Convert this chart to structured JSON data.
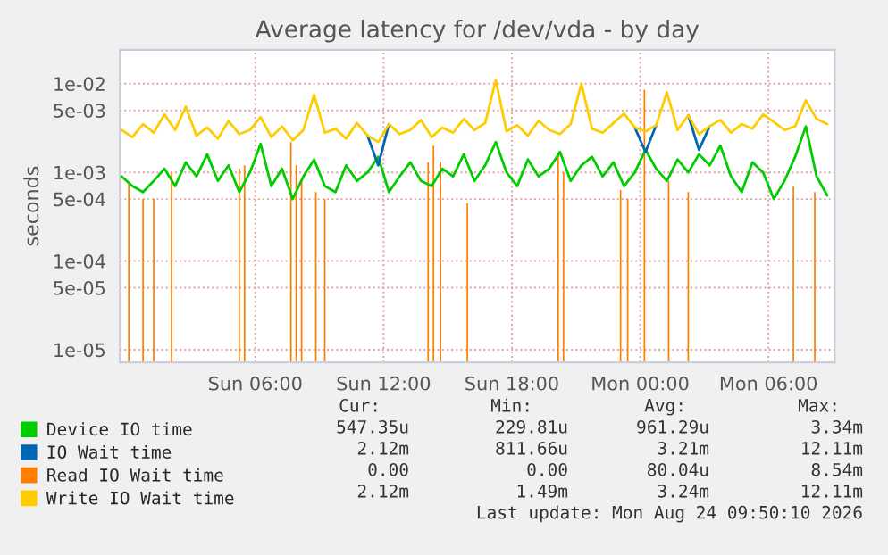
{
  "chart_data": {
    "type": "line",
    "title": "Average latency for /dev/vda - by day",
    "ylabel": "seconds",
    "log": true,
    "grid": true,
    "legend": "bottom left",
    "xlim": [
      "2026-08-22T23:40",
      "2026-08-24T09:06"
    ],
    "xticks": [
      {
        "value": "2026-08-23T06:00",
        "label": "Sun 06:00"
      },
      {
        "value": "2026-08-23T12:00",
        "label": "Sun 12:00"
      },
      {
        "value": "2026-08-23T18:00",
        "label": "Sun 18:00"
      },
      {
        "value": "2026-08-24T00:00",
        "label": "Mon 00:00"
      },
      {
        "value": "2026-08-24T06:00",
        "label": "Mon 06:00"
      }
    ],
    "ylim": [
      7.2e-06,
      0.024
    ],
    "yticks": [
      {
        "value": 0.01,
        "label": "1e-02"
      },
      {
        "value": 0.005,
        "label": "5e-03"
      },
      {
        "value": 0.001,
        "label": "1e-03"
      },
      {
        "value": 0.0005,
        "label": "5e-04"
      },
      {
        "value": 0.0001,
        "label": "1e-04"
      },
      {
        "value": 5e-05,
        "label": "5e-05"
      },
      {
        "value": 1e-05,
        "label": "1e-05"
      }
    ],
    "x": [
      "2026-08-22T23:45",
      "2026-08-23T00:15",
      "2026-08-23T00:45",
      "2026-08-23T01:15",
      "2026-08-23T01:45",
      "2026-08-23T02:15",
      "2026-08-23T02:45",
      "2026-08-23T03:15",
      "2026-08-23T03:45",
      "2026-08-23T04:15",
      "2026-08-23T04:45",
      "2026-08-23T05:15",
      "2026-08-23T05:45",
      "2026-08-23T06:15",
      "2026-08-23T06:45",
      "2026-08-23T07:15",
      "2026-08-23T07:45",
      "2026-08-23T08:15",
      "2026-08-23T08:45",
      "2026-08-23T09:15",
      "2026-08-23T09:45",
      "2026-08-23T10:15",
      "2026-08-23T10:45",
      "2026-08-23T11:15",
      "2026-08-23T11:45",
      "2026-08-23T12:15",
      "2026-08-23T12:45",
      "2026-08-23T13:15",
      "2026-08-23T13:45",
      "2026-08-23T14:15",
      "2026-08-23T14:45",
      "2026-08-23T15:15",
      "2026-08-23T15:45",
      "2026-08-23T16:15",
      "2026-08-23T16:45",
      "2026-08-23T17:15",
      "2026-08-23T17:45",
      "2026-08-23T18:15",
      "2026-08-23T18:45",
      "2026-08-23T19:15",
      "2026-08-23T19:45",
      "2026-08-23T20:15",
      "2026-08-23T20:45",
      "2026-08-23T21:15",
      "2026-08-23T21:45",
      "2026-08-23T22:15",
      "2026-08-23T22:45",
      "2026-08-23T23:15",
      "2026-08-23T23:45",
      "2026-08-24T00:15",
      "2026-08-24T00:45",
      "2026-08-24T01:15",
      "2026-08-24T01:45",
      "2026-08-24T02:15",
      "2026-08-24T02:45",
      "2026-08-24T03:15",
      "2026-08-24T03:45",
      "2026-08-24T04:15",
      "2026-08-24T04:45",
      "2026-08-24T05:15",
      "2026-08-24T05:45",
      "2026-08-24T06:15",
      "2026-08-24T06:45",
      "2026-08-24T07:15",
      "2026-08-24T07:45",
      "2026-08-24T08:15",
      "2026-08-24T08:45"
    ],
    "series": [
      {
        "name": "Device IO time",
        "color": "#00cc00",
        "values": [
          0.0009,
          0.0007,
          0.0006,
          0.0008,
          0.0011,
          0.0007,
          0.0013,
          0.0009,
          0.0016,
          0.0008,
          0.0012,
          0.0006,
          0.001,
          0.0021,
          0.0007,
          0.0011,
          0.0005,
          0.0009,
          0.0014,
          0.0007,
          0.0006,
          0.0012,
          0.0008,
          0.001,
          0.0015,
          0.0006,
          0.0009,
          0.0013,
          0.0008,
          0.0007,
          0.0011,
          0.0009,
          0.0016,
          0.0008,
          0.0012,
          0.0022,
          0.001,
          0.0007,
          0.0014,
          0.0009,
          0.0011,
          0.0017,
          0.0008,
          0.0012,
          0.0015,
          0.0009,
          0.0013,
          0.0007,
          0.001,
          0.0018,
          0.0011,
          0.0008,
          0.0014,
          0.001,
          0.0016,
          0.0012,
          0.002,
          0.0009,
          0.0006,
          0.0013,
          0.001,
          0.0005,
          0.0008,
          0.0015,
          0.0033,
          0.0009,
          0.00055
        ]
      },
      {
        "name": "IO Wait time",
        "color": "#0066b3",
        "values": [
          null,
          null,
          null,
          null,
          null,
          null,
          null,
          null,
          null,
          null,
          null,
          null,
          null,
          null,
          null,
          null,
          null,
          null,
          null,
          null,
          null,
          null,
          null,
          0.0026,
          0.0012,
          0.0035,
          null,
          null,
          null,
          null,
          null,
          null,
          null,
          null,
          null,
          null,
          null,
          null,
          null,
          null,
          null,
          null,
          null,
          null,
          null,
          null,
          null,
          null,
          0.0032,
          0.0017,
          0.0034,
          null,
          null,
          0.0044,
          0.0018,
          0.0033,
          null,
          null,
          null,
          null,
          null,
          null,
          null,
          null,
          null,
          null,
          null
        ]
      },
      {
        "name": "Read IO Wait time",
        "color": "#ff8000",
        "type": "bar",
        "x": [
          "2026-08-23T00:05",
          "2026-08-23T00:45",
          "2026-08-23T01:15",
          "2026-08-23T02:05",
          "2026-08-23T05:15",
          "2026-08-23T05:30",
          "2026-08-23T07:40",
          "2026-08-23T07:55",
          "2026-08-23T08:10",
          "2026-08-23T08:50",
          "2026-08-23T09:15",
          "2026-08-23T14:05",
          "2026-08-23T14:20",
          "2026-08-23T14:40",
          "2026-08-23T15:55",
          "2026-08-23T20:10",
          "2026-08-23T20:25",
          "2026-08-23T23:05",
          "2026-08-23T23:25",
          "2026-08-24T00:12",
          "2026-08-24T01:20",
          "2026-08-24T02:15",
          "2026-08-24T07:10",
          "2026-08-24T08:10"
        ],
        "values": [
          0.00076,
          0.0005,
          0.0005,
          0.001,
          0.0011,
          0.0012,
          0.0022,
          0.0012,
          0.0008,
          0.0006,
          0.0005,
          0.0013,
          0.002,
          0.0013,
          0.00045,
          0.0016,
          0.001,
          0.00063,
          0.0005,
          0.00854,
          0.0008,
          0.0006,
          0.0007,
          0.0006
        ]
      },
      {
        "name": "Write IO Wait time",
        "color": "#ffcc00",
        "values": [
          0.003,
          0.0025,
          0.0035,
          0.0028,
          0.0045,
          0.003,
          0.0055,
          0.0026,
          0.0032,
          0.0024,
          0.0038,
          0.0027,
          0.003,
          0.0042,
          0.0025,
          0.0033,
          0.0023,
          0.003,
          0.0075,
          0.0028,
          0.0031,
          0.0024,
          0.0036,
          0.0026,
          0.0022,
          0.0035,
          0.0027,
          0.003,
          0.0039,
          0.0025,
          0.0032,
          0.0028,
          0.004,
          0.003,
          0.0036,
          0.011,
          0.0029,
          0.0034,
          0.0026,
          0.0038,
          0.003,
          0.0027,
          0.0035,
          0.01,
          0.0031,
          0.0028,
          0.0036,
          0.0046,
          0.0032,
          0.0029,
          0.0034,
          0.008,
          0.003,
          0.0044,
          0.0027,
          0.0033,
          0.0039,
          0.0028,
          0.0035,
          0.0031,
          0.0045,
          0.0037,
          0.003,
          0.0033,
          0.0065,
          0.004,
          0.0035
        ]
      }
    ],
    "annotations": [
      "Cur:",
      "Min:",
      "Avg:",
      "Max:",
      "547.35u",
      "229.81u",
      "961.29u",
      "3.34m",
      "2.12m",
      "811.66u",
      "3.21m",
      "12.11m",
      "0.00",
      "0.00",
      "80.04u",
      "8.54m",
      "2.12m",
      "1.49m",
      "3.24m",
      "12.11m",
      "Last update: Mon Aug 24 09:50:10 2026"
    ]
  }
}
